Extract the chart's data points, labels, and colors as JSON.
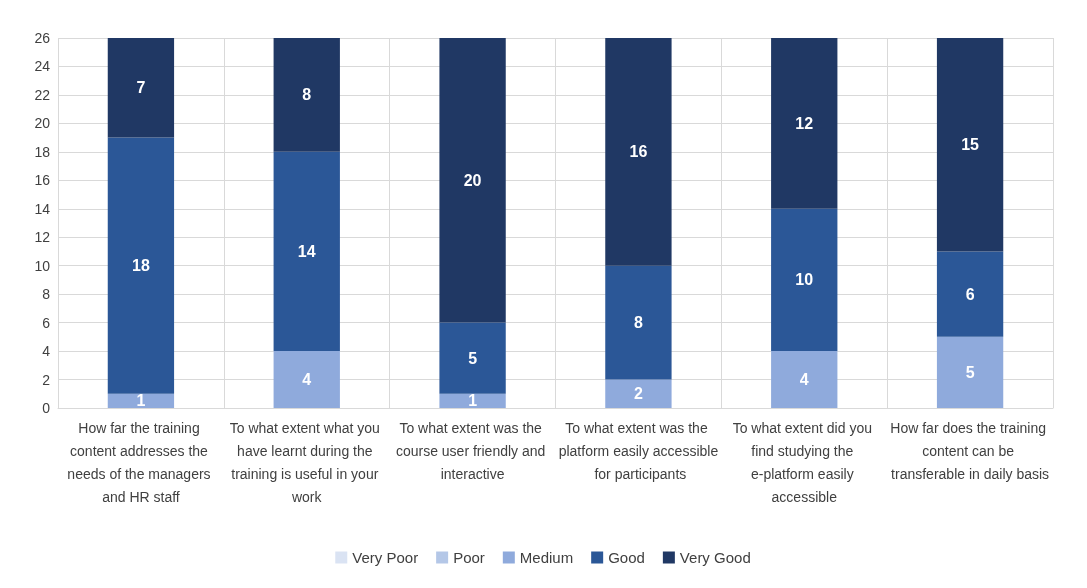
{
  "chart_data": {
    "type": "bar",
    "stacked": true,
    "data_labels": true,
    "grid": true,
    "legend": "bottom",
    "categories": [
      "How far the training content addresses the needs of the managers and HR staff",
      "To what extent what you have learnt during the training is useful in your work",
      "To what extent was the course user friendly and interactive",
      "To what extent was the platform easily accessible for participants",
      "To what extent did you find studying the e-platform easily accessible",
      "How far does the training content can be transferable in daily basis"
    ],
    "series": [
      {
        "name": "Very Poor",
        "color": "#dae3f3",
        "values": [
          null,
          null,
          null,
          null,
          null,
          null
        ]
      },
      {
        "name": "Poor",
        "color": "#b4c7e7",
        "values": [
          null,
          null,
          null,
          null,
          null,
          null
        ]
      },
      {
        "name": "Medium",
        "color": "#8faadc",
        "values": [
          1,
          4,
          1,
          2,
          4,
          5
        ]
      },
      {
        "name": "Good",
        "color": "#2b5797",
        "values": [
          18,
          14,
          5,
          8,
          10,
          6
        ]
      },
      {
        "name": "Very Good",
        "color": "#203864",
        "values": [
          7,
          8,
          20,
          16,
          12,
          15
        ]
      }
    ],
    "ylim": [
      0,
      26
    ],
    "yticks": [
      0,
      2,
      4,
      6,
      8,
      10,
      12,
      14,
      16,
      18,
      20,
      22,
      24,
      26
    ]
  }
}
